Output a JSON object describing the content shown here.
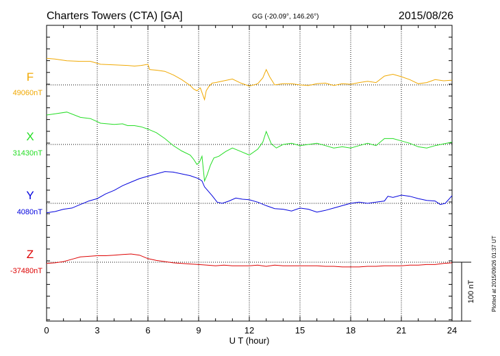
{
  "header": {
    "station": "Charters Towers (CTA)  [GA]",
    "coords": "GG (-20.09°, 146.26°)",
    "date": "2015/08/26"
  },
  "plotted_note": "Plotted at 2015/09/26 01:37 UT",
  "scale_label": "100 nT",
  "chart_data": {
    "type": "line",
    "xlabel": "U T (hour)",
    "xlim": [
      0,
      24
    ],
    "xticks": [
      "0",
      "3",
      "6",
      "9",
      "12",
      "15",
      "18",
      "21",
      "24"
    ],
    "grid": true,
    "units_per_division_nT": 100,
    "series": [
      {
        "name": "F",
        "baseline_label": "49060nT",
        "color": "#f0a800",
        "baseline": 49060,
        "x": [
          0,
          0.5,
          1.2,
          2,
          2.6,
          3.2,
          4,
          4.8,
          5.2,
          5.6,
          6,
          6.1,
          6.5,
          7,
          7.5,
          8,
          8.5,
          8.7,
          8.9,
          9.1,
          9.2,
          9.35,
          9.45,
          9.6,
          9.8,
          10,
          10.5,
          11,
          11.5,
          12,
          12.5,
          12.8,
          13,
          13.2,
          13.5,
          14,
          14.5,
          15,
          15.5,
          16,
          16.5,
          17,
          17.5,
          18,
          18.5,
          19,
          19.5,
          20,
          20.5,
          21,
          21.5,
          22,
          22.5,
          23,
          23.5,
          24
        ],
        "y": [
          49105,
          49104,
          49101,
          49100,
          49100,
          49095,
          49094,
          49093,
          49092,
          49093,
          49095,
          49086,
          49085,
          49083,
          49077,
          49069,
          49059,
          49053,
          49050,
          49055,
          49047,
          49035,
          49050,
          49057,
          49063,
          49064,
          49067,
          49070,
          49063,
          49058,
          49062,
          49072,
          49086,
          49074,
          49060,
          49062,
          49062,
          49060,
          49059,
          49062,
          49063,
          49059,
          49062,
          49061,
          49064,
          49066,
          49064,
          49075,
          49078,
          49074,
          49069,
          49062,
          49064,
          49069,
          49067,
          49068
        ]
      },
      {
        "name": "X",
        "baseline_label": "31430nT",
        "color": "#22dd22",
        "baseline": 31430,
        "x": [
          0,
          0.5,
          1.2,
          2,
          2.6,
          3.2,
          4,
          4.5,
          4.8,
          5.2,
          5.6,
          6,
          6.5,
          7,
          7.5,
          8,
          8.5,
          8.7,
          8.9,
          9.05,
          9.2,
          9.35,
          9.5,
          9.7,
          9.9,
          10.2,
          10.6,
          11,
          11.5,
          12,
          12.5,
          12.8,
          13,
          13.3,
          13.6,
          14,
          14.5,
          15,
          15.5,
          16,
          16.5,
          17,
          17.5,
          18,
          18.5,
          19,
          19.5,
          20,
          20.5,
          21,
          21.5,
          22,
          22.5,
          23,
          23.5,
          24
        ],
        "y": [
          31480,
          31482,
          31485,
          31476,
          31474,
          31466,
          31464,
          31465,
          31462,
          31462,
          31460,
          31456,
          31450,
          31440,
          31428,
          31419,
          31412,
          31405,
          31396,
          31400,
          31410,
          31368,
          31378,
          31395,
          31407,
          31410,
          31418,
          31424,
          31418,
          31412,
          31422,
          31434,
          31452,
          31431,
          31424,
          31430,
          31432,
          31428,
          31430,
          31432,
          31428,
          31424,
          31426,
          31424,
          31428,
          31432,
          31428,
          31440,
          31440,
          31436,
          31432,
          31426,
          31424,
          31428,
          31431,
          31434
        ]
      },
      {
        "name": "Y",
        "baseline_label": "4080nT",
        "color": "#0000dd",
        "baseline": 4080,
        "x": [
          0,
          0.5,
          1,
          1.5,
          2,
          2.5,
          3,
          3.5,
          4,
          4.5,
          5,
          5.5,
          6,
          6.5,
          7,
          7.5,
          8,
          8.5,
          9,
          9.2,
          9.35,
          9.5,
          9.8,
          10.1,
          10.4,
          10.8,
          11.2,
          11.6,
          12,
          12.5,
          13,
          13.5,
          14,
          14.5,
          15,
          15.5,
          16,
          16.5,
          17,
          17.5,
          18,
          18.5,
          19,
          19.5,
          20,
          20.2,
          20.5,
          21,
          21.5,
          22,
          22.5,
          23,
          23.3,
          23.6,
          24
        ],
        "y": [
          4064,
          4066,
          4070,
          4072,
          4078,
          4084,
          4088,
          4096,
          4102,
          4110,
          4116,
          4122,
          4126,
          4130,
          4134,
          4133,
          4130,
          4127,
          4122,
          4118,
          4108,
          4103,
          4093,
          4082,
          4080,
          4084,
          4089,
          4087,
          4086,
          4082,
          4076,
          4071,
          4070,
          4067,
          4072,
          4070,
          4065,
          4068,
          4072,
          4076,
          4080,
          4082,
          4080,
          4082,
          4084,
          4092,
          4090,
          4094,
          4092,
          4088,
          4085,
          4084,
          4078,
          4080,
          4093
        ]
      },
      {
        "name": "Z",
        "baseline_label": "-37480nT",
        "color": "#dd0000",
        "baseline": -37480,
        "x": [
          0,
          0.5,
          1,
          1.5,
          2,
          2.5,
          3,
          3.5,
          4,
          4.5,
          5,
          5.5,
          6,
          6.5,
          7,
          7.5,
          8,
          8.5,
          9,
          9.5,
          10,
          10.5,
          11,
          11.5,
          12,
          12.5,
          13,
          13.5,
          14,
          14.5,
          15,
          15.5,
          16,
          16.5,
          17,
          17.5,
          18,
          18.5,
          19,
          19.5,
          20,
          20.5,
          21,
          21.5,
          22,
          22.5,
          23,
          23.5,
          24
        ],
        "y": [
          -37482,
          -37481,
          -37479,
          -37475,
          -37471,
          -37470,
          -37469,
          -37469,
          -37468,
          -37467,
          -37466,
          -37468,
          -37474,
          -37477,
          -37479,
          -37481,
          -37482,
          -37483,
          -37484,
          -37485,
          -37486,
          -37485,
          -37486,
          -37486,
          -37486,
          -37485,
          -37487,
          -37485,
          -37486,
          -37486,
          -37486,
          -37486,
          -37486,
          -37487,
          -37487,
          -37488,
          -37488,
          -37488,
          -37487,
          -37487,
          -37486,
          -37486,
          -37486,
          -37485,
          -37485,
          -37484,
          -37484,
          -37482,
          -37481
        ]
      }
    ]
  }
}
